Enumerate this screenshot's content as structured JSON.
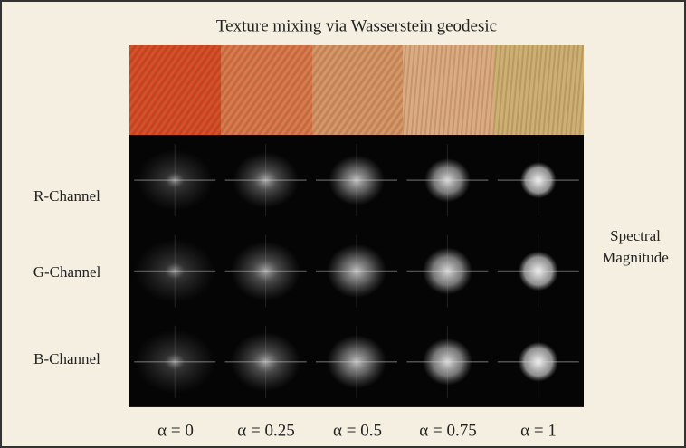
{
  "title": "Texture mixing via Wasserstein geodesic",
  "row_labels": [
    "R-Channel",
    "G-Channel",
    "B-Channel"
  ],
  "side_label": [
    "Spectral",
    "Magnitude"
  ],
  "alpha_labels": [
    "α = 0",
    "α = 0.25",
    "α = 0.5",
    "α = 0.75",
    "α = 1"
  ]
}
